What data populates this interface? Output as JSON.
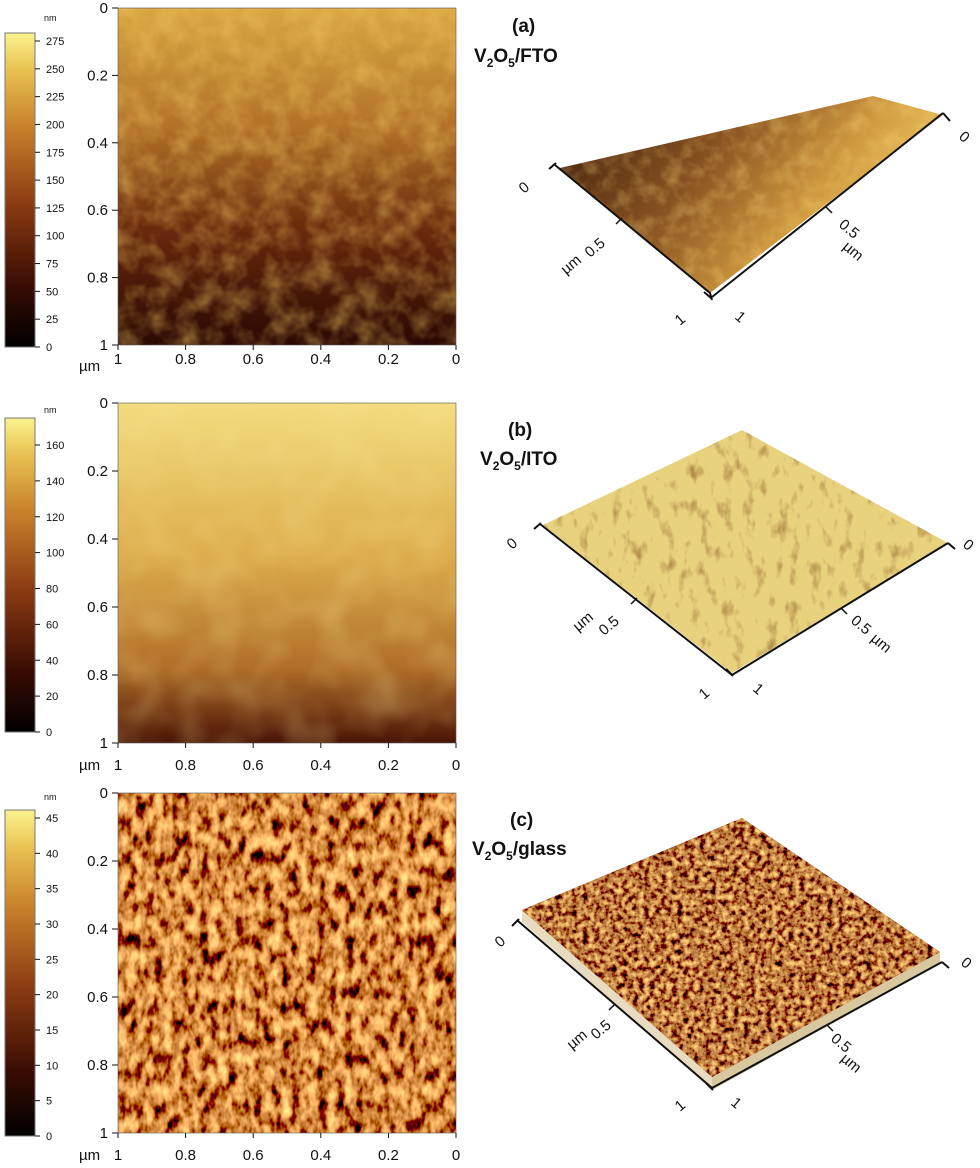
{
  "figure": {
    "panels": [
      {
        "id": "a",
        "label": "(a)",
        "title": {
          "pre": "V",
          "sub1": "2",
          "mid": "O",
          "sub2": "5",
          "post": "/FTO"
        },
        "colorbar": {
          "unit": "nm",
          "ticks": [
            "275",
            "250",
            "225",
            "200",
            "175",
            "150",
            "125",
            "100",
            "75",
            "50",
            "25",
            "0"
          ]
        },
        "map": {
          "y_ticks": [
            "0",
            "0.2",
            "0.4",
            "0.6",
            "0.8",
            "1"
          ],
          "x_ticks": [
            "1",
            "0.8",
            "0.6",
            "0.4",
            "0.2",
            "0"
          ],
          "x_unit": "µm",
          "texture": "smooth-grains",
          "gradient": [
            "#d9a642",
            "#a8641e",
            "#3a0d03"
          ]
        },
        "view3d": {
          "corner_labels": [
            "0",
            "0",
            "1",
            "1"
          ],
          "mid_labels": [
            "0.5",
            "0.5"
          ],
          "unit_labels": [
            "µm",
            "µm"
          ],
          "colors": [
            "#5a2a10",
            "#c98a38",
            "#e8c060"
          ]
        }
      },
      {
        "id": "b",
        "label": "(b)",
        "title": {
          "pre": "V",
          "sub1": "2",
          "mid": "O",
          "sub2": "5",
          "post": "/ITO"
        },
        "colorbar": {
          "unit": "nm",
          "ticks": [
            "160",
            "140",
            "120",
            "100",
            "80",
            "60",
            "40",
            "20",
            "0"
          ]
        },
        "map": {
          "y_ticks": [
            "0",
            "0.2",
            "0.4",
            "0.6",
            "0.8",
            "1"
          ],
          "x_ticks": [
            "1",
            "0.8",
            "0.6",
            "0.4",
            "0.2",
            "0"
          ],
          "x_unit": "µm",
          "texture": "smooth-large",
          "gradient": [
            "#f2da7a",
            "#d9a845",
            "#5a1a06"
          ]
        },
        "view3d": {
          "corner_labels": [
            "0",
            "0",
            "1",
            "1"
          ],
          "mid_labels": [
            "0.5",
            "0.5"
          ],
          "unit_labels": [
            "µm",
            "µm"
          ],
          "colors": [
            "#e6cf78",
            "#b88636",
            "#f5e6a0"
          ]
        }
      },
      {
        "id": "c",
        "label": "(c)",
        "title": {
          "pre": "V",
          "sub1": "2",
          "mid": "O",
          "sub2": "5",
          "post": "/glass"
        },
        "colorbar": {
          "unit": "nm",
          "ticks": [
            "45",
            "40",
            "35",
            "30",
            "25",
            "20",
            "15",
            "10",
            "5",
            "0"
          ]
        },
        "map": {
          "y_ticks": [
            "0",
            "0.2",
            "0.4",
            "0.6",
            "0.8",
            "1"
          ],
          "x_ticks": [
            "1",
            "0.8",
            "0.6",
            "0.4",
            "0.2",
            "0"
          ],
          "x_unit": "µm",
          "texture": "fine-rough",
          "gradient": [
            "#c98a2e",
            "#8a4a16",
            "#2a0a02"
          ]
        },
        "view3d": {
          "corner_labels": [
            "0",
            "0",
            "1",
            "1"
          ],
          "mid_labels": [
            "0.5",
            "0.5"
          ],
          "unit_labels": [
            "µm",
            "µm"
          ],
          "colors": [
            "#4a2a0e",
            "#b8862e",
            "#e0bb5a"
          ]
        }
      }
    ],
    "colorbar_gradient": [
      "#000000",
      "#3a0d04",
      "#8a3a12",
      "#c8802a",
      "#e8c050",
      "#fbf38e"
    ]
  }
}
